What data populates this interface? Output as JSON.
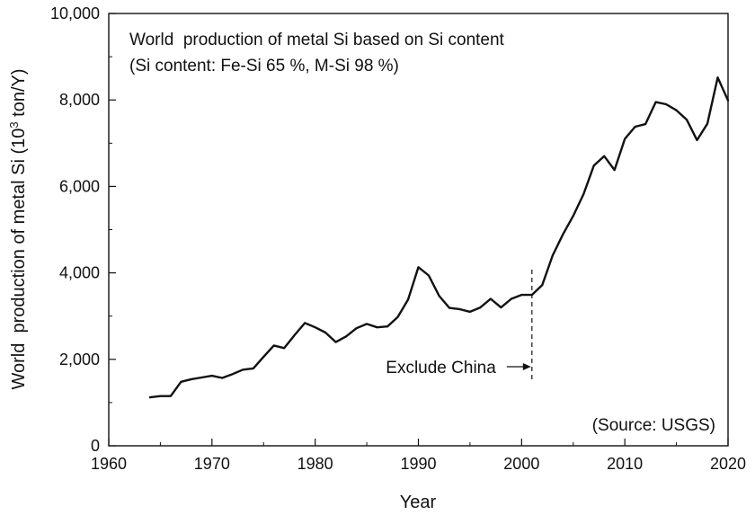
{
  "chart_data": {
    "type": "line",
    "title": "World  production of metal Si based on Si content",
    "subtitle": "(Si content: Fe-Si 65 %, M-Si 98 %)",
    "xlabel": "Year",
    "ylabel_prefix": "World  production of metal Si (10",
    "ylabel_sup": "3",
    "ylabel_suffix": " ton/Y)",
    "xlim": [
      1960,
      2020
    ],
    "ylim": [
      0,
      10000
    ],
    "xticks": [
      1960,
      1970,
      1980,
      1990,
      2000,
      2010,
      2020
    ],
    "yticks": [
      0,
      2000,
      4000,
      6000,
      8000,
      10000
    ],
    "xtick_labels": [
      "1960",
      "1970",
      "1980",
      "1990",
      "2000",
      "2010",
      "2020"
    ],
    "ytick_labels": [
      "0",
      "2,000",
      "4,000",
      "6,000",
      "8,000",
      "10,000"
    ],
    "grid": false,
    "annotations": {
      "exclude_china": "Exclude China",
      "exclude_china_year": 2001,
      "source": "(Source: USGS)"
    },
    "series": [
      {
        "name": "World production of metal Si",
        "x": [
          1964,
          1965,
          1966,
          1967,
          1968,
          1969,
          1970,
          1971,
          1972,
          1973,
          1974,
          1975,
          1976,
          1977,
          1978,
          1979,
          1980,
          1981,
          1982,
          1983,
          1984,
          1985,
          1986,
          1987,
          1988,
          1989,
          1990,
          1991,
          1992,
          1993,
          1994,
          1995,
          1996,
          1997,
          1998,
          1999,
          2000,
          2001,
          2002,
          2003,
          2004,
          2005,
          2006,
          2007,
          2008,
          2009,
          2010,
          2011,
          2012,
          2013,
          2014,
          2015,
          2016,
          2017,
          2018,
          2019,
          2020
        ],
        "values": [
          1120,
          1150,
          1150,
          1480,
          1540,
          1580,
          1620,
          1570,
          1660,
          1760,
          1790,
          2060,
          2320,
          2260,
          2560,
          2840,
          2740,
          2620,
          2400,
          2530,
          2720,
          2820,
          2740,
          2760,
          2980,
          3380,
          4130,
          3940,
          3470,
          3190,
          3160,
          3100,
          3200,
          3400,
          3200,
          3400,
          3490,
          3490,
          3720,
          4400,
          4890,
          5320,
          5820,
          6480,
          6700,
          6380,
          7100,
          7380,
          7440,
          7950,
          7900,
          7760,
          7540,
          7070,
          7450,
          8520,
          7990
        ]
      }
    ]
  }
}
